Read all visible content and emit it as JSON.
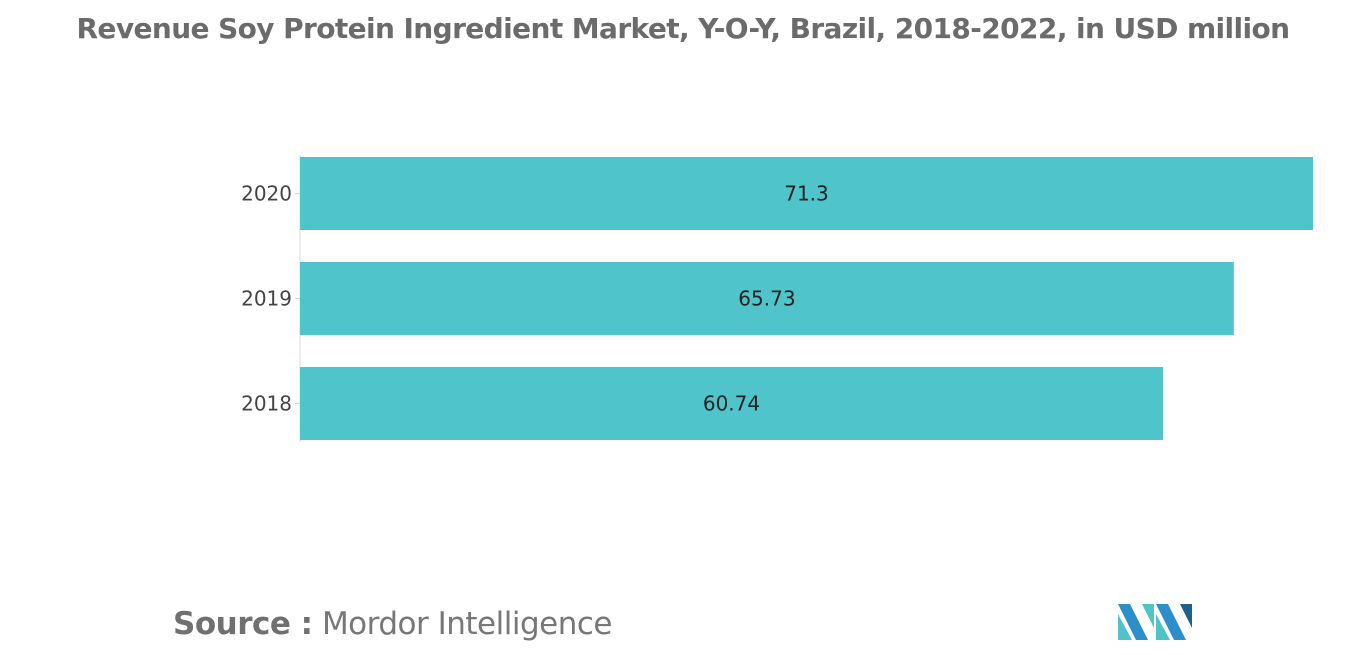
{
  "title": "Revenue Soy Protein Ingredient Market, Y-O-Y, Brazil, 2018-2022, in USD million",
  "source": {
    "label": "Source :",
    "name": "Mordor Intelligence"
  },
  "logo": {
    "icon": "mordor-intelligence-logo-icon",
    "colors": [
      "#2c8fc9",
      "#4fc3c8",
      "#1f5f8b"
    ]
  },
  "chart_data": {
    "type": "bar",
    "orientation": "horizontal",
    "categories": [
      "2020",
      "2019",
      "2018"
    ],
    "values": [
      71.3,
      65.73,
      60.74
    ],
    "value_labels": [
      "71.3",
      "65.73",
      "60.74"
    ],
    "xlim": [
      0,
      71.3
    ],
    "grid": false,
    "legend": "none",
    "bar_color": "#4fc4ca"
  }
}
